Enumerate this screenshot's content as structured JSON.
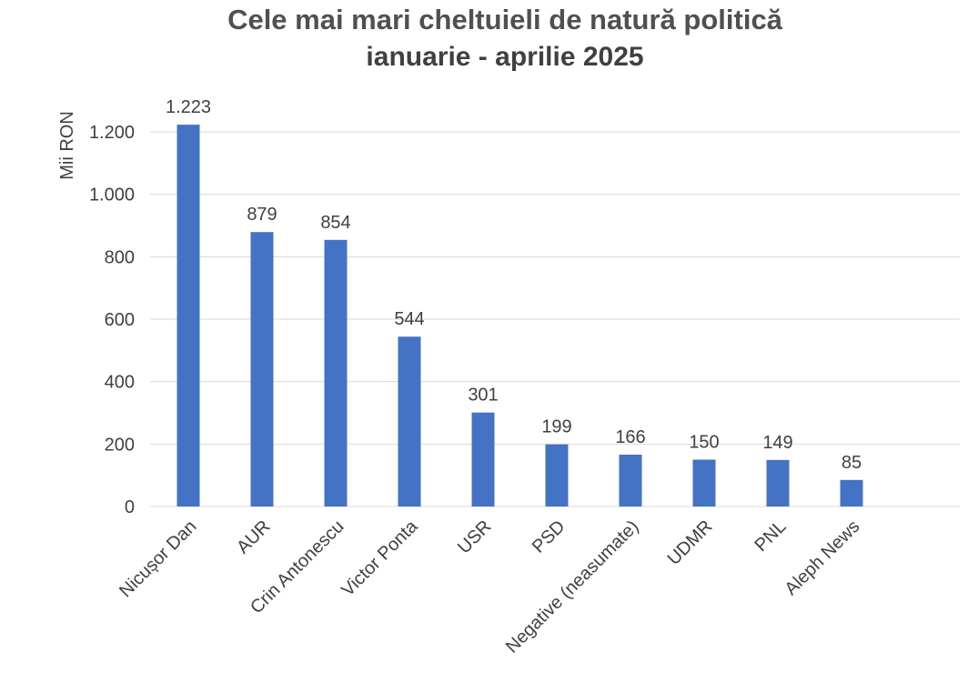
{
  "chart_data": {
    "type": "bar",
    "title": "Cele mai mari cheltuieli de natură politică",
    "subtitle": "ianuarie - aprilie 2025",
    "ylabel": "Mii RON",
    "xlabel": "",
    "categories": [
      "Nicușor Dan",
      "AUR",
      "Crin Antonescu",
      "Victor Ponta",
      "USR",
      "PSD",
      "Negative (neasumate)",
      "UDMR",
      "PNL",
      "Aleph News"
    ],
    "values": [
      1223,
      879,
      854,
      544,
      301,
      199,
      166,
      150,
      149,
      85
    ],
    "value_labels": [
      "1.223",
      "879",
      "854",
      "544",
      "301",
      "199",
      "166",
      "150",
      "149",
      "85"
    ],
    "ylim": [
      0,
      1200
    ],
    "y_ticks": [
      0,
      200,
      400,
      600,
      800,
      1000,
      1200
    ],
    "y_tick_labels": [
      "0",
      "200",
      "400",
      "600",
      "800",
      "1.000",
      "1.200"
    ],
    "grid": true,
    "legend": "none",
    "bar_color": "#4472C4",
    "grid_color": "#D9D9D9"
  }
}
